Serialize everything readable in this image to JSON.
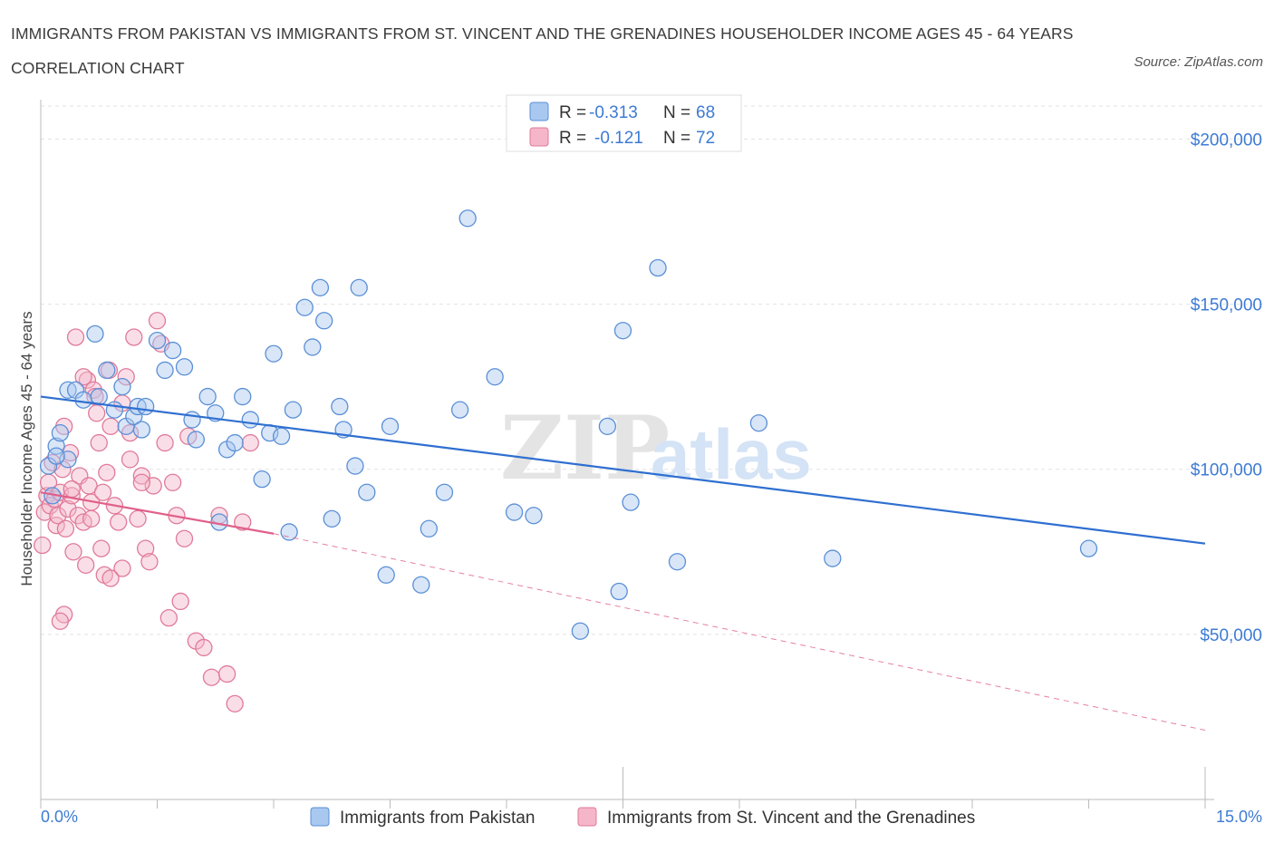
{
  "title": "IMMIGRANTS FROM PAKISTAN VS IMMIGRANTS FROM ST. VINCENT AND THE GRENADINES HOUSEHOLDER INCOME AGES 45 - 64 YEARS CORRELATION CHART",
  "source": "Source: ZipAtlas.com",
  "watermark": {
    "zip": "ZIP",
    "atlas": "atlas"
  },
  "colors": {
    "blue_fill": "#a8c8f0",
    "blue_stroke": "#5b8fd6",
    "blue_line": "#2f6fd0",
    "pink_fill": "#f5b6c9",
    "pink_stroke": "#e07a9a",
    "pink_line": "#e0608a",
    "tick_text": "#3d7bd4"
  },
  "legend": {
    "r_label": "R =",
    "n_label": "N =",
    "rows": [
      {
        "r": "-0.313",
        "n": "68"
      },
      {
        "r": "-0.121",
        "n": "72"
      }
    ]
  },
  "bottom_legend": [
    "Immigrants from Pakistan",
    "Immigrants from St. Vincent and the Grenadines"
  ],
  "chart_data": {
    "type": "scatter",
    "title": "IMMIGRANTS FROM PAKISTAN VS IMMIGRANTS FROM ST. VINCENT AND THE GRENADINES HOUSEHOLDER INCOME AGES 45 - 64 YEARS CORRELATION CHART",
    "xlabel": "",
    "ylabel": "Householder Income Ages 45 - 64 years",
    "xlim": [
      0,
      15
    ],
    "ylim": [
      0,
      210000
    ],
    "x_tick_labels": [
      "0.0%",
      "15.0%"
    ],
    "y_ticks": [
      50000,
      100000,
      150000,
      200000
    ],
    "y_tick_labels": [
      "$50,000",
      "$100,000",
      "$150,000",
      "$200,000"
    ],
    "grid": true,
    "series": [
      {
        "name": "Immigrants from Pakistan",
        "r": -0.313,
        "n": 68,
        "trend": {
          "x0": 0,
          "y0": 122000,
          "x1": 15,
          "y1": 77500
        },
        "points": [
          [
            0.1,
            101000
          ],
          [
            0.2,
            107000
          ],
          [
            0.25,
            111000
          ],
          [
            0.35,
            103000
          ],
          [
            0.35,
            124000
          ],
          [
            0.45,
            124000
          ],
          [
            0.55,
            121000
          ],
          [
            0.7,
            141000
          ],
          [
            0.75,
            122000
          ],
          [
            0.85,
            130000
          ],
          [
            0.95,
            118000
          ],
          [
            1.05,
            125000
          ],
          [
            1.1,
            113000
          ],
          [
            1.2,
            116000
          ],
          [
            1.25,
            119000
          ],
          [
            1.35,
            119000
          ],
          [
            1.5,
            139000
          ],
          [
            1.6,
            130000
          ],
          [
            1.7,
            136000
          ],
          [
            1.85,
            131000
          ],
          [
            1.95,
            115000
          ],
          [
            2.0,
            109000
          ],
          [
            2.15,
            122000
          ],
          [
            2.25,
            117000
          ],
          [
            2.3,
            84000
          ],
          [
            2.4,
            106000
          ],
          [
            2.5,
            108000
          ],
          [
            2.6,
            122000
          ],
          [
            2.7,
            115000
          ],
          [
            2.85,
            97000
          ],
          [
            2.95,
            111000
          ],
          [
            3.0,
            135000
          ],
          [
            3.1,
            110000
          ],
          [
            3.2,
            81000
          ],
          [
            3.25,
            118000
          ],
          [
            3.4,
            149000
          ],
          [
            3.5,
            137000
          ],
          [
            3.6,
            155000
          ],
          [
            3.65,
            145000
          ],
          [
            3.75,
            85000
          ],
          [
            3.85,
            119000
          ],
          [
            3.9,
            112000
          ],
          [
            4.05,
            101000
          ],
          [
            4.1,
            155000
          ],
          [
            4.2,
            93000
          ],
          [
            4.45,
            68000
          ],
          [
            4.5,
            113000
          ],
          [
            4.9,
            65000
          ],
          [
            5.0,
            82000
          ],
          [
            5.2,
            93000
          ],
          [
            5.4,
            118000
          ],
          [
            5.5,
            176000
          ],
          [
            5.85,
            128000
          ],
          [
            6.1,
            87000
          ],
          [
            6.35,
            86000
          ],
          [
            6.95,
            51000
          ],
          [
            7.3,
            113000
          ],
          [
            7.45,
            63000
          ],
          [
            7.5,
            142000
          ],
          [
            7.6,
            90000
          ],
          [
            7.95,
            161000
          ],
          [
            8.2,
            72000
          ],
          [
            9.25,
            114000
          ],
          [
            10.2,
            73000
          ],
          [
            13.5,
            76000
          ],
          [
            0.15,
            92000
          ],
          [
            0.2,
            104000
          ],
          [
            1.3,
            112000
          ]
        ]
      },
      {
        "name": "Immigrants from St. Vincent and the Grenadines",
        "r": -0.121,
        "n": 72,
        "trend_solid": {
          "x0": 0,
          "y0": 93000,
          "x1": 3.0,
          "y1": 80500
        },
        "trend_dashed": {
          "x0": 3.0,
          "y0": 80500,
          "x1": 15,
          "y1": 21000
        },
        "points": [
          [
            0.02,
            77000
          ],
          [
            0.05,
            87000
          ],
          [
            0.08,
            92000
          ],
          [
            0.1,
            96000
          ],
          [
            0.12,
            89000
          ],
          [
            0.15,
            102000
          ],
          [
            0.18,
            91000
          ],
          [
            0.2,
            83000
          ],
          [
            0.22,
            86000
          ],
          [
            0.25,
            93000
          ],
          [
            0.28,
            100000
          ],
          [
            0.3,
            113000
          ],
          [
            0.32,
            82000
          ],
          [
            0.35,
            88000
          ],
          [
            0.38,
            105000
          ],
          [
            0.4,
            92000
          ],
          [
            0.42,
            75000
          ],
          [
            0.45,
            140000
          ],
          [
            0.48,
            86000
          ],
          [
            0.5,
            98000
          ],
          [
            0.55,
            84000
          ],
          [
            0.58,
            71000
          ],
          [
            0.6,
            127000
          ],
          [
            0.62,
            95000
          ],
          [
            0.65,
            90000
          ],
          [
            0.68,
            124000
          ],
          [
            0.7,
            122000
          ],
          [
            0.72,
            117000
          ],
          [
            0.75,
            108000
          ],
          [
            0.78,
            76000
          ],
          [
            0.8,
            93000
          ],
          [
            0.82,
            68000
          ],
          [
            0.85,
            99000
          ],
          [
            0.88,
            130000
          ],
          [
            0.9,
            113000
          ],
          [
            0.95,
            89000
          ],
          [
            1.0,
            84000
          ],
          [
            1.05,
            70000
          ],
          [
            1.1,
            128000
          ],
          [
            1.15,
            103000
          ],
          [
            1.2,
            140000
          ],
          [
            1.25,
            85000
          ],
          [
            1.3,
            98000
          ],
          [
            1.35,
            76000
          ],
          [
            1.4,
            72000
          ],
          [
            1.45,
            95000
          ],
          [
            1.5,
            145000
          ],
          [
            1.55,
            138000
          ],
          [
            1.6,
            108000
          ],
          [
            1.65,
            55000
          ],
          [
            1.7,
            96000
          ],
          [
            1.75,
            86000
          ],
          [
            1.8,
            60000
          ],
          [
            1.85,
            79000
          ],
          [
            1.9,
            110000
          ],
          [
            2.0,
            48000
          ],
          [
            2.1,
            46000
          ],
          [
            2.2,
            37000
          ],
          [
            2.3,
            86000
          ],
          [
            2.4,
            38000
          ],
          [
            2.5,
            29000
          ],
          [
            2.6,
            84000
          ],
          [
            2.7,
            108000
          ],
          [
            0.3,
            56000
          ],
          [
            0.25,
            54000
          ],
          [
            0.55,
            128000
          ],
          [
            0.9,
            67000
          ],
          [
            1.05,
            120000
          ],
          [
            1.15,
            111000
          ],
          [
            1.3,
            96000
          ],
          [
            0.4,
            94000
          ],
          [
            0.65,
            85000
          ]
        ]
      }
    ]
  }
}
